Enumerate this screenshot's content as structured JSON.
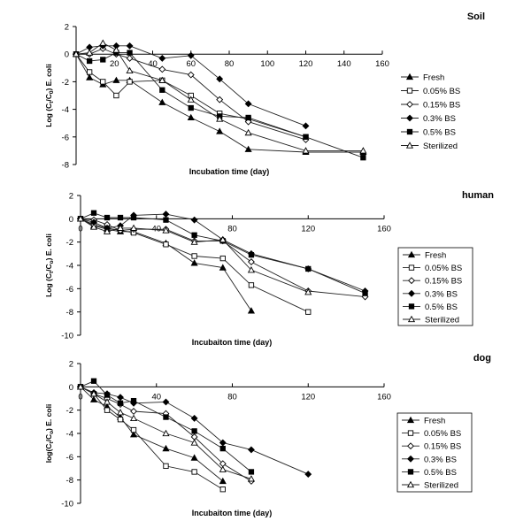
{
  "chart_data": [
    {
      "type": "line",
      "title": "Soil",
      "xlabel": "Incubation time (day)",
      "ylabel": "Log (C_t/C_0) E. coli",
      "ylabel_parts": [
        "Log (C",
        "t",
        "/C",
        "0",
        ") E. coli"
      ],
      "xlim": [
        0,
        160
      ],
      "ylim": [
        -8,
        2
      ],
      "xticks": [
        "20",
        "40",
        "60",
        "80",
        "100",
        "120",
        "140",
        "160"
      ],
      "yticks": [
        "2",
        "0",
        "-2",
        "-4",
        "-6",
        "-8"
      ],
      "legend_position": "right",
      "series": [
        {
          "name": "Fresh",
          "marker": "filled-triangle",
          "x": [
            0,
            7,
            14,
            21,
            28,
            45,
            60,
            75,
            90,
            120,
            150
          ],
          "y": [
            0,
            -1.7,
            -2.2,
            -1.9,
            -1.9,
            -3.5,
            -4.6,
            -5.6,
            -6.9,
            -7.1,
            -7.1
          ]
        },
        {
          "name": "0.05% BS",
          "marker": "open-square",
          "x": [
            0,
            7,
            14,
            21,
            28,
            45,
            60,
            75,
            90,
            120
          ],
          "y": [
            0,
            -1.3,
            -2.0,
            -3.0,
            -2.0,
            -1.9,
            -3.0,
            -4.3,
            -4.7,
            -6.0
          ]
        },
        {
          "name": "0.15% BS",
          "marker": "open-diamond",
          "x": [
            0,
            7,
            14,
            21,
            28,
            45,
            60,
            75,
            90,
            120
          ],
          "y": [
            0,
            0,
            0.4,
            0,
            -0.3,
            -1.1,
            -1.5,
            -3.3,
            -4.9,
            -6.2
          ]
        },
        {
          "name": "0.3% BS",
          "marker": "filled-diamond",
          "x": [
            0,
            7,
            14,
            21,
            28,
            45,
            60,
            75,
            90,
            120
          ],
          "y": [
            0,
            0.5,
            0.6,
            0.6,
            0.6,
            -0.3,
            -0.1,
            -1.8,
            -3.6,
            -5.2
          ]
        },
        {
          "name": "0.5% BS",
          "marker": "filled-square",
          "x": [
            0,
            7,
            14,
            21,
            28,
            45,
            60,
            75,
            90,
            120,
            150
          ],
          "y": [
            0,
            -0.5,
            -0.4,
            0.1,
            0.1,
            -2.6,
            -3.9,
            -4.5,
            -4.6,
            -6.0,
            -7.5
          ]
        },
        {
          "name": "Sterilized",
          "marker": "open-triangle",
          "x": [
            0,
            7,
            14,
            21,
            28,
            45,
            60,
            75,
            90,
            120,
            150
          ],
          "y": [
            0,
            0.1,
            0.8,
            0.3,
            -1.2,
            -1.9,
            -3.3,
            -4.7,
            -5.7,
            -7.0,
            -7.0
          ]
        }
      ]
    },
    {
      "type": "line",
      "title": "human",
      "xlabel": "Incubaiton time (day)",
      "ylabel": "Log (C_t/C_o) E. coli",
      "ylabel_parts": [
        "Log (C",
        "t",
        "/C",
        "o",
        ") E. coli"
      ],
      "xlim": [
        0,
        160
      ],
      "ylim": [
        -10,
        2
      ],
      "xticks": [
        "0",
        "40",
        "80",
        "120",
        "160"
      ],
      "yticks": [
        "2",
        "0",
        "-2",
        "-4",
        "-6",
        "-8",
        "-10"
      ],
      "legend_position": "right",
      "series": [
        {
          "name": "Fresh",
          "marker": "filled-triangle",
          "x": [
            0,
            7,
            14,
            21,
            28,
            45,
            60,
            75,
            90
          ],
          "y": [
            0,
            -0.6,
            -0.9,
            -1.1,
            -1.1,
            -2.1,
            -3.8,
            -4.2,
            -7.9
          ]
        },
        {
          "name": "0.05% BS",
          "marker": "open-square",
          "x": [
            0,
            7,
            14,
            21,
            28,
            45,
            60,
            75,
            90,
            120
          ],
          "y": [
            0,
            -0.5,
            -0.8,
            -1.0,
            -1.2,
            -2.2,
            -3.2,
            -3.4,
            -5.7,
            -8.0
          ]
        },
        {
          "name": "0.15% BS",
          "marker": "open-diamond",
          "x": [
            0,
            7,
            14,
            21,
            28,
            45,
            60,
            75,
            90,
            120,
            150
          ],
          "y": [
            0,
            -0.1,
            -0.5,
            -1.0,
            -0.9,
            -0.9,
            -1.9,
            -1.9,
            -3.7,
            -6.2,
            -6.7
          ]
        },
        {
          "name": "0.3% BS",
          "marker": "filled-diamond",
          "x": [
            0,
            7,
            14,
            21,
            28,
            45,
            60,
            75,
            90,
            120,
            150
          ],
          "y": [
            0,
            -0.3,
            -0.8,
            -0.6,
            0.3,
            0.4,
            -0.1,
            -1.8,
            -3.0,
            -4.3,
            -6.2
          ]
        },
        {
          "name": "0.5% BS",
          "marker": "filled-square",
          "x": [
            0,
            7,
            14,
            21,
            28,
            45,
            60,
            75,
            90,
            120,
            150
          ],
          "y": [
            0,
            0.5,
            0.1,
            0.1,
            0.1,
            -0.1,
            -1.4,
            -1.9,
            -3.1,
            -4.3,
            -6.4
          ]
        },
        {
          "name": "Sterilized",
          "marker": "open-triangle",
          "x": [
            0,
            7,
            14,
            21,
            28,
            45,
            60,
            75,
            90,
            120
          ],
          "y": [
            0,
            -0.7,
            -1.1,
            -0.8,
            -0.8,
            -1.0,
            -2.0,
            -1.8,
            -4.4,
            -6.3
          ]
        }
      ]
    },
    {
      "type": "line",
      "title": "dog",
      "xlabel": "Incubaiton time (day)",
      "ylabel": "log(C_t/C_o) E. coli",
      "ylabel_parts": [
        "log(C",
        "t",
        "/C",
        "o",
        ") E. coli"
      ],
      "xlim": [
        0,
        160
      ],
      "ylim": [
        -10,
        2
      ],
      "xticks": [
        "0",
        "40",
        "80",
        "120",
        "160"
      ],
      "yticks": [
        "2",
        "0",
        "-2",
        "-4",
        "-6",
        "-8",
        "-10"
      ],
      "legend_position": "right",
      "series": [
        {
          "name": "Fresh",
          "marker": "filled-triangle",
          "x": [
            0,
            7,
            14,
            21,
            28,
            45,
            60,
            75
          ],
          "y": [
            0,
            -1.1,
            -1.7,
            -2.6,
            -4.1,
            -5.3,
            -6.1,
            -8.1
          ]
        },
        {
          "name": "0.05% BS",
          "marker": "open-square",
          "x": [
            0,
            7,
            14,
            21,
            28,
            45,
            60,
            75
          ],
          "y": [
            0,
            -0.6,
            -2.0,
            -2.8,
            -3.7,
            -6.8,
            -7.3,
            -8.8
          ]
        },
        {
          "name": "0.15% BS",
          "marker": "open-diamond",
          "x": [
            0,
            7,
            14,
            21,
            28,
            45,
            60,
            75,
            90
          ],
          "y": [
            0,
            -0.6,
            -1.0,
            -1.5,
            -2.1,
            -2.3,
            -4.3,
            -6.6,
            -8.1
          ]
        },
        {
          "name": "0.3% BS",
          "marker": "filled-diamond",
          "x": [
            0,
            7,
            14,
            21,
            28,
            45,
            60,
            75,
            90,
            120
          ],
          "y": [
            0,
            -0.5,
            -0.6,
            -0.9,
            -1.4,
            -1.3,
            -2.7,
            -4.8,
            -5.4,
            -7.5
          ]
        },
        {
          "name": "0.5% BS",
          "marker": "filled-square",
          "x": [
            0,
            7,
            14,
            21,
            28,
            45,
            60,
            75,
            90
          ],
          "y": [
            0,
            0.5,
            -0.7,
            -1.4,
            -1.2,
            -2.6,
            -3.8,
            -5.3,
            -7.3
          ]
        },
        {
          "name": "Sterilized",
          "marker": "open-triangle",
          "x": [
            0,
            7,
            14,
            21,
            28,
            45,
            60,
            75,
            90
          ],
          "y": [
            0,
            -0.6,
            -1.3,
            -2.2,
            -2.7,
            -4.0,
            -4.8,
            -7.1,
            -7.9
          ]
        }
      ]
    }
  ]
}
